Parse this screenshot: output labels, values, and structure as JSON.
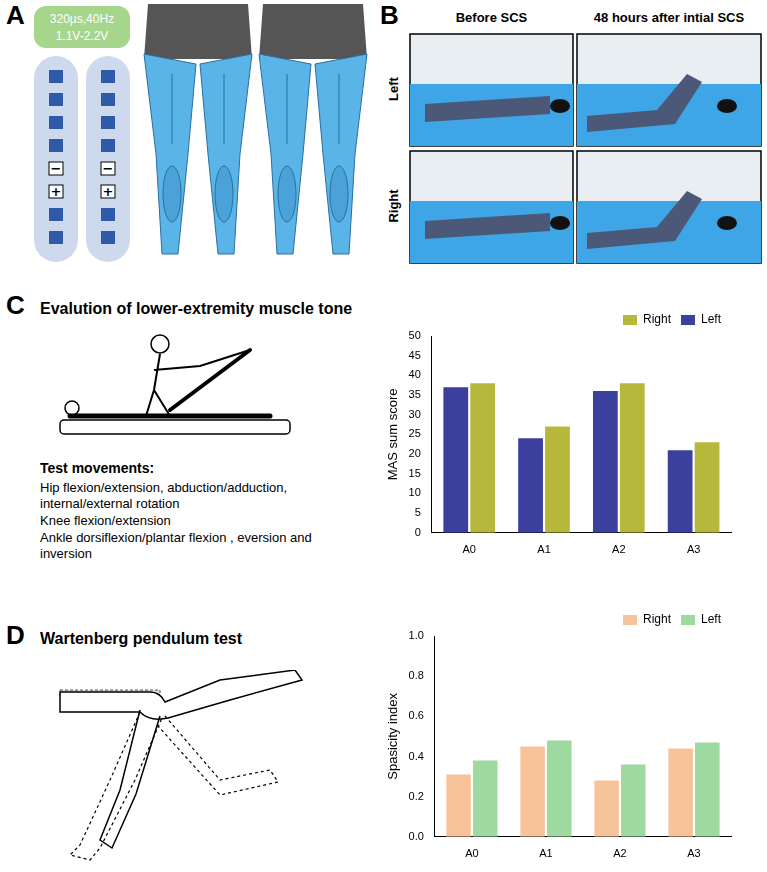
{
  "figure": {
    "panels": {
      "A": {
        "letter": "A",
        "stimulation": [
          "320µs,40Hz",
          "1.1V-2.2V"
        ],
        "electrode_signs": [
          "−",
          "+"
        ]
      },
      "B": {
        "letter": "B",
        "columns": [
          "Before SCS",
          "48 hours after intial SCS"
        ],
        "rows": [
          "Left",
          "Right"
        ]
      },
      "C": {
        "letter": "C",
        "title": "Evalution of lower-extremity muscle tone",
        "list_title": "Test movements:",
        "items": [
          "Hip flexion/extension, abduction/adduction, internal/external rotation",
          "Knee flexion/extension",
          "Ankle dorsiflexion/plantar flexion , eversion and inversion"
        ]
      },
      "D": {
        "letter": "D",
        "title": "Wartenberg pendulum test"
      }
    }
  },
  "chart_data": [
    {
      "type": "bar",
      "categories": [
        "A0",
        "A1",
        "A2",
        "A3"
      ],
      "series": [
        {
          "name": "Left",
          "color": "#3b3f9e",
          "values": [
            37,
            24,
            36,
            21
          ]
        },
        {
          "name": "Right",
          "color": "#b5b83b",
          "values": [
            38,
            27,
            38,
            23
          ]
        }
      ],
      "y_label": "MAS sum score",
      "ylim": [
        0,
        50
      ],
      "yticks": [
        0,
        5,
        10,
        15,
        20,
        25,
        30,
        35,
        40,
        45,
        50
      ],
      "grid": false,
      "legend": "upper right"
    },
    {
      "type": "bar",
      "categories": [
        "A0",
        "A1",
        "A2",
        "A3"
      ],
      "series": [
        {
          "name": "Right",
          "color": "#f7c39a",
          "values": [
            0.31,
            0.45,
            0.28,
            0.44
          ]
        },
        {
          "name": "Left",
          "color": "#9ed9a0",
          "values": [
            0.38,
            0.48,
            0.36,
            0.47
          ]
        }
      ],
      "y_label": "Spasicity index",
      "ylim": [
        0,
        1
      ],
      "yticks": [
        {
          "value": 0,
          "label": "0.0"
        },
        0.2,
        0.4,
        0.6,
        0.8,
        {
          "value": 1,
          "label": "1.0"
        }
      ],
      "grid": false,
      "legend": "upper right"
    }
  ]
}
